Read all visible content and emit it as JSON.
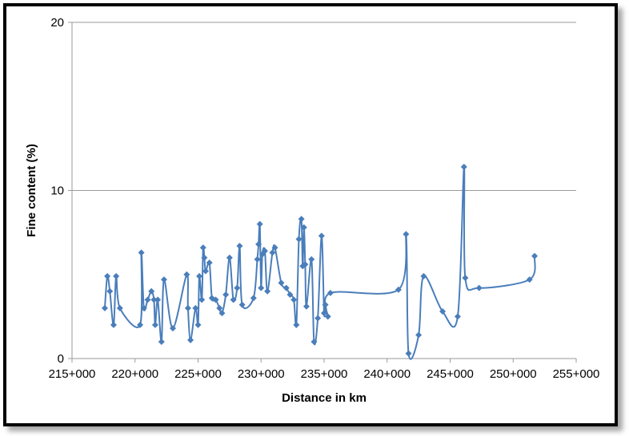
{
  "chart_data": {
    "type": "line",
    "xlabel": "Distance in km",
    "ylabel": "Fine content (%)",
    "x_tick_labels": [
      "215+000",
      "220+000",
      "225+000",
      "230+000",
      "235+000",
      "240+000",
      "245+000",
      "250+000",
      "255+000"
    ],
    "x_ticks": [
      215000,
      220000,
      225000,
      230000,
      235000,
      240000,
      245000,
      250000,
      255000
    ],
    "y_tick_labels": [
      "0",
      "10",
      "20"
    ],
    "y_ticks": [
      0,
      10,
      20
    ],
    "xlim": [
      215000,
      255000
    ],
    "ylim": [
      0,
      20
    ],
    "grid": "horizontal",
    "legend": "none",
    "series_color": "#4a7ebb",
    "series": [
      {
        "x": [
          217600,
          217800,
          218000,
          218300,
          218500,
          218800,
          220400,
          220500,
          220700,
          221000,
          221300,
          221500,
          221600,
          221800,
          222100,
          222300,
          223000,
          224100,
          224200,
          224400,
          224800,
          225000,
          225100,
          225300,
          225400,
          225500,
          225600,
          225900,
          226100,
          226400,
          226700,
          226900,
          227200,
          227500,
          227800,
          228100,
          228300,
          228500,
          229400,
          229700,
          229800,
          229900,
          230000,
          230100,
          230300,
          230500,
          230900,
          231100,
          231600,
          232000,
          232300,
          232600,
          232800,
          233000,
          233200,
          233300,
          233400,
          233500,
          233600,
          234000,
          234200,
          234500,
          234800,
          235000,
          235100,
          235300,
          235500,
          240900,
          241500,
          241700,
          242500,
          242900,
          244400,
          245600,
          246100,
          246200,
          247300,
          251300,
          251700
        ],
        "y": [
          3,
          4.9,
          4,
          2,
          4.9,
          3,
          2,
          6.3,
          3,
          3.5,
          4,
          3.5,
          2,
          3.5,
          1,
          4.7,
          1.8,
          5,
          3,
          1.1,
          3,
          2,
          4.9,
          3.5,
          6.6,
          6,
          5.2,
          5.7,
          3.6,
          3.5,
          3,
          2.7,
          3.8,
          6,
          3.5,
          4.2,
          6.7,
          3.2,
          3.6,
          5.9,
          6.8,
          8,
          4.2,
          6.2,
          6.4,
          4,
          6.3,
          6.6,
          4.5,
          4.2,
          3.8,
          3.5,
          2,
          7.1,
          8.3,
          5.5,
          7.8,
          5.6,
          3.1,
          5.9,
          1,
          2.4,
          7.3,
          2.7,
          3.2,
          2.5,
          3.9,
          4.1,
          7.4,
          0.3,
          1.4,
          4.9,
          2.8,
          2.5,
          11.4,
          4.8,
          4.2,
          4.7,
          6.1
        ]
      }
    ]
  }
}
